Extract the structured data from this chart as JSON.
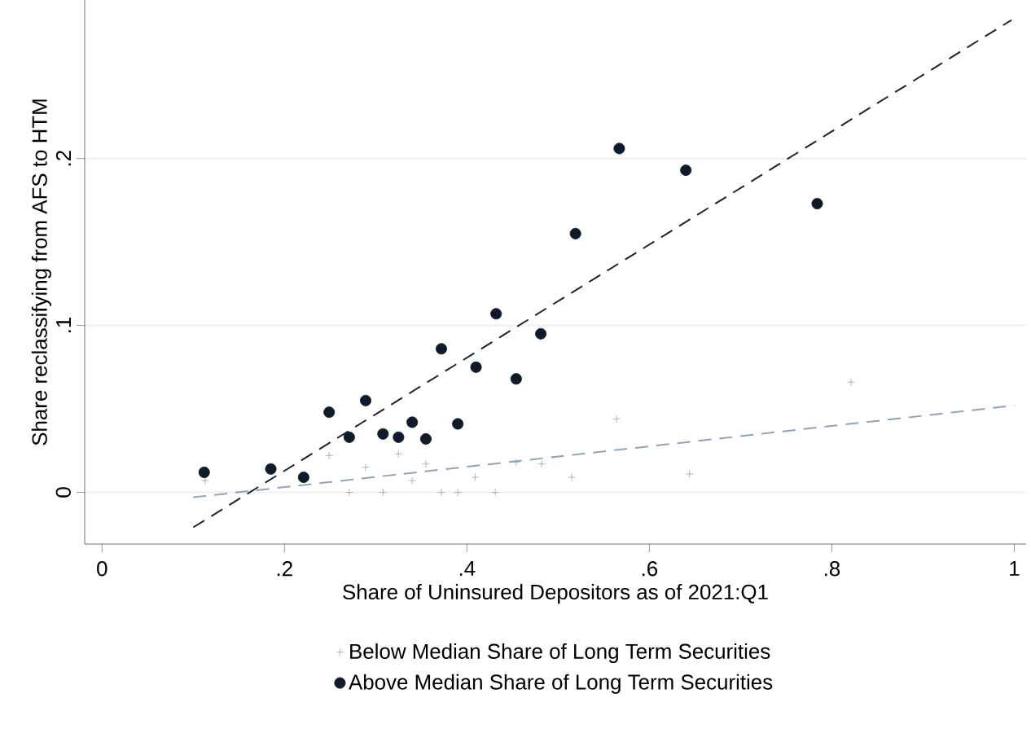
{
  "chart_data": {
    "type": "scatter",
    "xlabel": "Share of Uninsured Depositors as of 2021:Q1",
    "ylabel": "Share reclassifying from AFS to HTM",
    "xlim": [
      -0.019,
      1.013
    ],
    "ylim": [
      -0.031,
      0.295
    ],
    "xticks": [
      0,
      {
        "value": 0.2,
        "label": ".2"
      },
      {
        "value": 0.4,
        "label": ".4"
      },
      {
        "value": 0.6,
        "label": ".6"
      },
      {
        "value": 0.8,
        "label": ".8"
      },
      1
    ],
    "yticks": [
      0,
      {
        "value": 0.1,
        "label": ".1"
      },
      {
        "value": 0.2,
        "label": ".2"
      }
    ],
    "grid": "y",
    "legend": "bottom",
    "series": [
      {
        "name": "Below Median Share of Long Term Securities",
        "marker": "cross",
        "color": "#90a4bc",
        "x": [
          0.113,
          0.249,
          0.271,
          0.289,
          0.308,
          0.325,
          0.34,
          0.355,
          0.372,
          0.39,
          0.409,
          0.431,
          0.454,
          0.482,
          0.515,
          0.564,
          0.644,
          0.821
        ],
        "values": [
          0.007,
          0.022,
          0,
          0.015,
          0,
          0.023,
          0.007,
          0.017,
          0,
          0,
          0.009,
          0,
          0.018,
          0.017,
          0.009,
          0.044,
          0.011,
          0.066
        ]
      },
      {
        "name": "Above Median Share of Long Term Securities",
        "marker": "circle",
        "color": "#0f1a2a",
        "x": [
          0.112,
          0.185,
          0.221,
          0.249,
          0.271,
          0.289,
          0.308,
          0.325,
          0.34,
          0.355,
          0.372,
          0.39,
          0.41,
          0.432,
          0.454,
          0.481,
          0.519,
          0.567,
          0.64,
          0.784
        ],
        "values": [
          0.012,
          0.014,
          0.009,
          0.048,
          0.033,
          0.055,
          0.035,
          0.033,
          0.042,
          0.032,
          0.086,
          0.041,
          0.075,
          0.107,
          0.068,
          0.095,
          0.155,
          0.206,
          0.193,
          0.173
        ]
      },
      {
        "type": "line",
        "line_style": "dashed",
        "color": "#8fa3ba",
        "x": [
          0.1,
          1.0
        ],
        "values": [
          -0.003,
          0.052
        ]
      },
      {
        "type": "line",
        "line_style": "dashed",
        "color": "#1a2436",
        "x": [
          0.1,
          0.997
        ],
        "values": [
          -0.021,
          0.283
        ]
      }
    ]
  }
}
